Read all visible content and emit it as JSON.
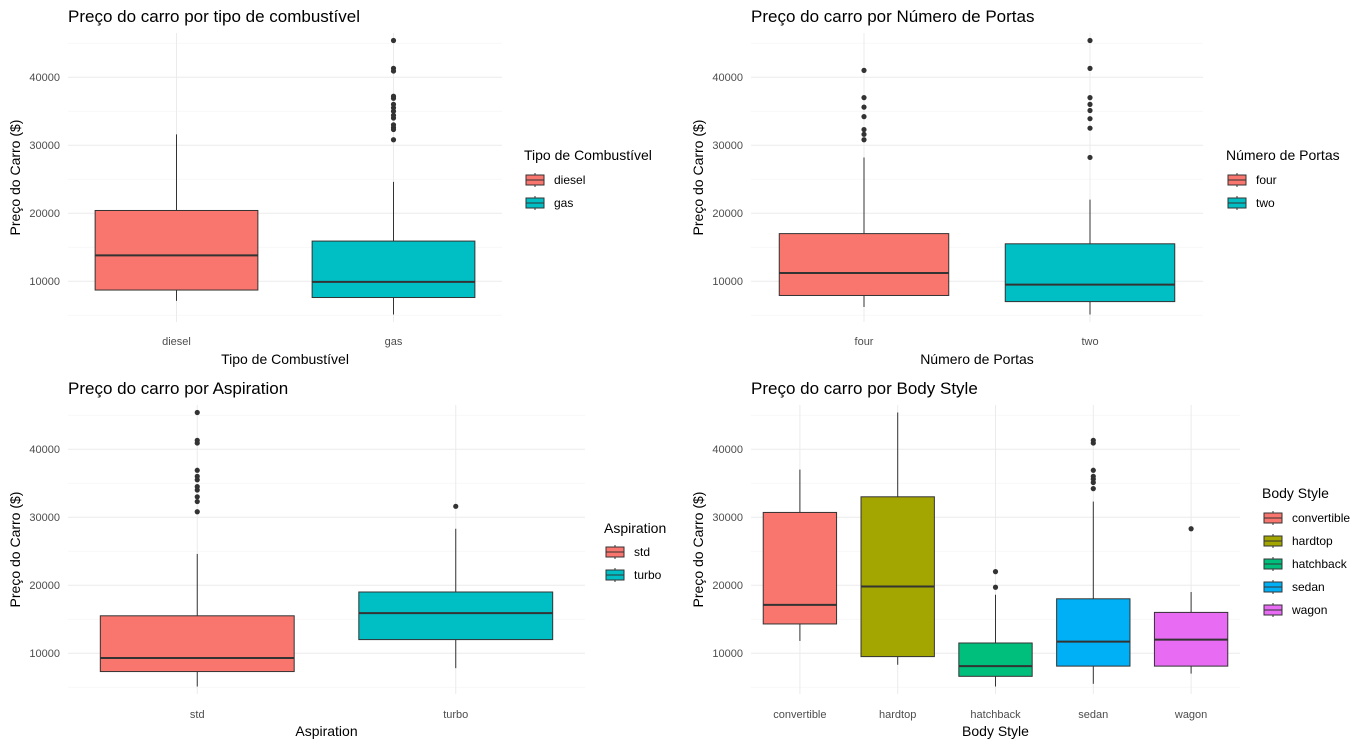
{
  "chart_data": [
    {
      "type": "box",
      "title": "Preço do carro por tipo de combustível",
      "xlabel": "Tipo de Combustível",
      "ylabel": "Preço do Carro ($)",
      "ylim": [
        4000,
        46500
      ],
      "yticks": [
        10000,
        20000,
        30000,
        40000
      ],
      "grid": true,
      "legend": {
        "title": "Tipo de Combustível",
        "position": "right"
      },
      "categories": [
        "diesel",
        "gas"
      ],
      "boxes": [
        {
          "name": "diesel",
          "color": "#F8766D",
          "lower": 7100,
          "q1": 8700,
          "median": 13800,
          "q3": 20400,
          "upper": 31600,
          "outliers": []
        },
        {
          "name": "gas",
          "color": "#00BFC4",
          "lower": 5100,
          "q1": 7600,
          "median": 9900,
          "q3": 15900,
          "upper": 24600,
          "outliers": [
            30800,
            32300,
            32600,
            33000,
            34000,
            34400,
            35000,
            35500,
            36000,
            36900,
            37200,
            40900,
            41300,
            45400
          ]
        }
      ]
    },
    {
      "type": "box",
      "title": "Preço do carro por Número de Portas",
      "xlabel": "Número de Portas",
      "ylabel": "Preço do Carro ($)",
      "ylim": [
        4000,
        46500
      ],
      "yticks": [
        10000,
        20000,
        30000,
        40000
      ],
      "grid": true,
      "legend": {
        "title": "Número de Portas",
        "position": "right"
      },
      "categories": [
        "four",
        "two"
      ],
      "boxes": [
        {
          "name": "four",
          "color": "#F8766D",
          "lower": 6200,
          "q1": 7900,
          "median": 11200,
          "q3": 17000,
          "upper": 28200,
          "outliers": [
            30800,
            31600,
            32300,
            34200,
            35600,
            37000,
            41000
          ]
        },
        {
          "name": "two",
          "color": "#00BFC4",
          "lower": 5100,
          "q1": 7000,
          "median": 9500,
          "q3": 15500,
          "upper": 22000,
          "outliers": [
            28200,
            32500,
            33900,
            35100,
            36000,
            37000,
            41300,
            45400
          ]
        }
      ]
    },
    {
      "type": "box",
      "title": "Preço do carro por Aspiration",
      "xlabel": "Aspiration",
      "ylabel": "Preço do Carro ($)",
      "ylim": [
        4000,
        46500
      ],
      "yticks": [
        10000,
        20000,
        30000,
        40000
      ],
      "grid": true,
      "legend": {
        "title": "Aspiration",
        "position": "right"
      },
      "categories": [
        "std",
        "turbo"
      ],
      "boxes": [
        {
          "name": "std",
          "color": "#F8766D",
          "lower": 5100,
          "q1": 7300,
          "median": 9300,
          "q3": 15500,
          "upper": 24600,
          "outliers": [
            30800,
            32300,
            33000,
            34000,
            34500,
            35500,
            36000,
            36900,
            40900,
            41300,
            45400
          ]
        },
        {
          "name": "turbo",
          "color": "#00BFC4",
          "lower": 7800,
          "q1": 12000,
          "median": 15900,
          "q3": 19000,
          "upper": 28300,
          "outliers": [
            31600
          ]
        }
      ]
    },
    {
      "type": "box",
      "title": "Preço do carro por Body Style",
      "xlabel": "Body Style",
      "ylabel": "Preço do Carro ($)",
      "ylim": [
        4000,
        46500
      ],
      "yticks": [
        10000,
        20000,
        30000,
        40000
      ],
      "grid": true,
      "legend": {
        "title": "Body Style",
        "position": "right"
      },
      "categories": [
        "convertible",
        "hardtop",
        "hatchback",
        "sedan",
        "wagon"
      ],
      "boxes": [
        {
          "name": "convertible",
          "color": "#F8766D",
          "lower": 11800,
          "q1": 14300,
          "median": 17100,
          "q3": 30700,
          "upper": 37000,
          "outliers": []
        },
        {
          "name": "hardtop",
          "color": "#A3A500",
          "lower": 8300,
          "q1": 9500,
          "median": 19800,
          "q3": 33000,
          "upper": 45400,
          "outliers": []
        },
        {
          "name": "hatchback",
          "color": "#00BF7D",
          "lower": 5100,
          "q1": 6600,
          "median": 8100,
          "q3": 11500,
          "upper": 18600,
          "outliers": [
            19700,
            22000
          ]
        },
        {
          "name": "sedan",
          "color": "#00B0F6",
          "lower": 5500,
          "q1": 8100,
          "median": 11700,
          "q3": 18000,
          "upper": 32300,
          "outliers": [
            34200,
            35100,
            35600,
            36000,
            36900,
            40900,
            41300
          ]
        },
        {
          "name": "wagon",
          "color": "#E76BF3",
          "lower": 7000,
          "q1": 8100,
          "median": 12000,
          "q3": 16000,
          "upper": 19000,
          "outliers": [
            28300
          ]
        }
      ]
    }
  ]
}
